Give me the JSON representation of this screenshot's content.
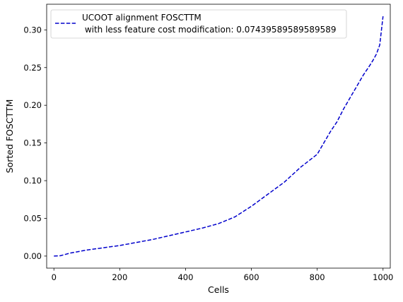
{
  "chart_data": {
    "type": "line",
    "title": "",
    "xlabel": "Cells",
    "ylabel": "Sorted FOSCTTM",
    "xlim": [
      -22,
      1022
    ],
    "ylim": [
      -0.016,
      0.334
    ],
    "xticks": [
      0,
      200,
      400,
      600,
      800,
      1000
    ],
    "xtick_labels": [
      "0",
      "200",
      "400",
      "600",
      "800",
      "1000"
    ],
    "yticks": [
      0.0,
      0.05,
      0.1,
      0.15,
      0.2,
      0.25,
      0.3
    ],
    "ytick_labels": [
      "0.00",
      "0.05",
      "0.10",
      "0.15",
      "0.20",
      "0.25",
      "0.30"
    ],
    "grid": false,
    "legend": {
      "placement": "top-left",
      "entries": [
        {
          "line1": "UCOOT alignment FOSCTTM",
          "line2": " with less feature cost modification: 0.07439589589589589"
        }
      ]
    },
    "series": [
      {
        "color": "#0000cc",
        "line_style": "dashed",
        "x": [
          0,
          20,
          50,
          100,
          150,
          200,
          250,
          300,
          350,
          400,
          450,
          500,
          550,
          600,
          650,
          700,
          750,
          800,
          820,
          840,
          860,
          880,
          900,
          920,
          940,
          960,
          970,
          980,
          990,
          1000
        ],
        "y": [
          0.0,
          0.0005,
          0.004,
          0.008,
          0.011,
          0.014,
          0.018,
          0.022,
          0.027,
          0.032,
          0.037,
          0.043,
          0.052,
          0.066,
          0.082,
          0.098,
          0.118,
          0.135,
          0.15,
          0.165,
          0.178,
          0.195,
          0.21,
          0.225,
          0.24,
          0.253,
          0.26,
          0.268,
          0.28,
          0.318
        ]
      }
    ]
  }
}
